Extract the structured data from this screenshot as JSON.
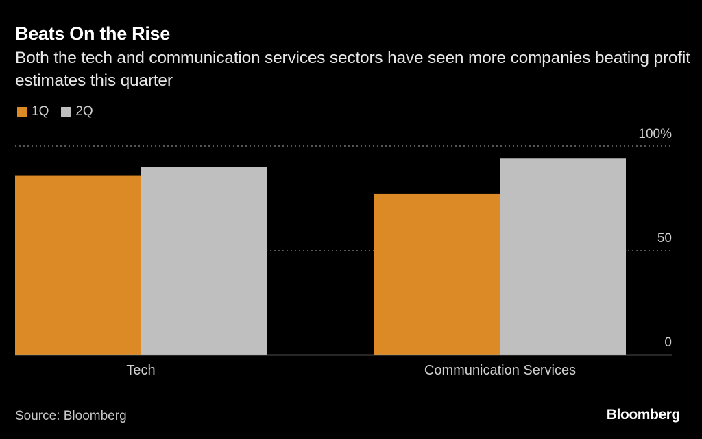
{
  "header": {
    "title": "Beats On the Rise",
    "subtitle": "Both the tech and communication services sectors have seen more companies beating profit estimates this quarter"
  },
  "legend": [
    {
      "label": "1Q",
      "color": "#dc8a26"
    },
    {
      "label": "2Q",
      "color": "#bfbfbf"
    }
  ],
  "footer": {
    "source": "Source: Bloomberg",
    "brand": "Bloomberg"
  },
  "chart_data": {
    "type": "bar",
    "title": "Beats On the Rise",
    "subtitle": "Both the tech and communication services sectors have seen more companies beating profit estimates this quarter",
    "categories": [
      "Tech",
      "Communication Services"
    ],
    "series": [
      {
        "name": "1Q",
        "color": "#dc8a26",
        "values": [
          86,
          77
        ]
      },
      {
        "name": "2Q",
        "color": "#bfbfbf",
        "values": [
          90,
          94
        ]
      }
    ],
    "xlabel": "",
    "ylabel": "",
    "ylim": [
      0,
      100
    ],
    "yticks": [
      0,
      50,
      100
    ],
    "ytick_labels": [
      "0",
      "50",
      "100%"
    ],
    "yaxis_position": "right",
    "grid": true,
    "legend_position": "top-left"
  }
}
